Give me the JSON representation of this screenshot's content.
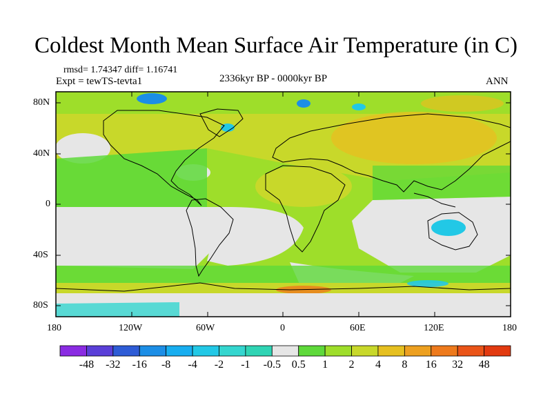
{
  "title": "Coldest Month Mean Surface Air Temperature (in C)",
  "stats": "rmsd= 1.74347 diff= 1.16741",
  "experiment": "Expt = tewTS-tevta1",
  "period": "2336kyr BP - 0000kyr BP",
  "season": "ANN",
  "map": {
    "lat_ticks": [
      "80N",
      "40N",
      "0",
      "40S",
      "80S"
    ],
    "lon_ticks": [
      "180",
      "120W",
      "60W",
      "0",
      "60E",
      "120E",
      "180"
    ]
  },
  "colorbar": {
    "labels": [
      "-48",
      "-32",
      "-16",
      "-8",
      "-4",
      "-2",
      "-1",
      "-0.5",
      "0.5",
      "1",
      "2",
      "4",
      "8",
      "16",
      "32",
      "48"
    ],
    "colors": [
      "#8a2be2",
      "#5a3fd8",
      "#2e5cd6",
      "#1c8ee6",
      "#18aef0",
      "#22c8e6",
      "#34d6cf",
      "#2fd4b4",
      "#e6e6e6",
      "#5ed93a",
      "#9ede2a",
      "#c8d82a",
      "#e6c020",
      "#eda020",
      "#ee7a1c",
      "#ea5418",
      "#e23a10"
    ]
  },
  "colors": {
    "ocean_neutral": "#e6e6e6",
    "warm_light": "#9ede2a",
    "warm_mid": "#c8d82a",
    "warm_orange": "#e6c020",
    "green": "#5ed93a",
    "cold_cyan": "#22c8e6",
    "cold_blue": "#1c8ee6",
    "coast": "#000000"
  }
}
